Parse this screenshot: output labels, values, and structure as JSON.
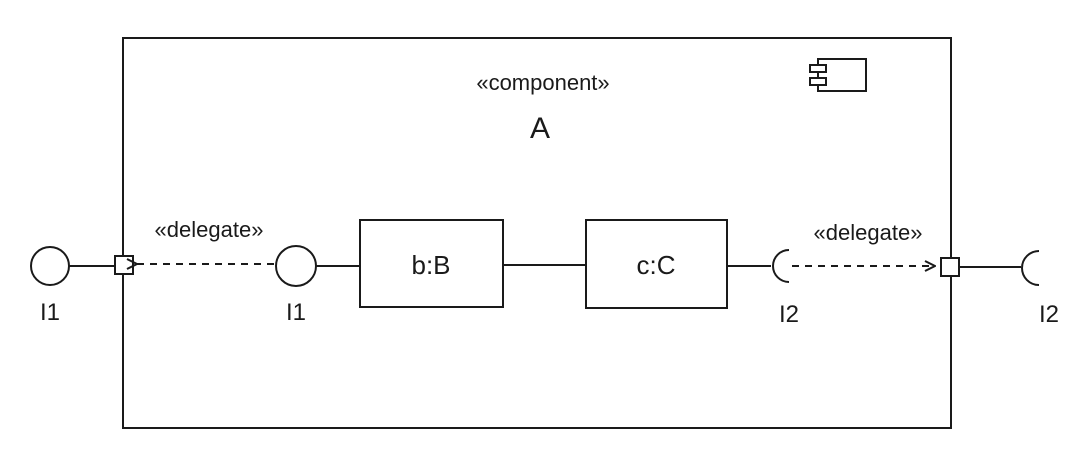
{
  "component": {
    "stereotype": "«component»",
    "name": "A",
    "icon": "component-icon"
  },
  "parts": [
    {
      "label": "b:B"
    },
    {
      "label": "c:C"
    }
  ],
  "delegates": [
    {
      "label": "«delegate»"
    },
    {
      "label": "«delegate»"
    }
  ],
  "interfaces": {
    "outer_provided": "I1",
    "inner_provided": "I1",
    "inner_required": "I2",
    "outer_required": "I2"
  }
}
